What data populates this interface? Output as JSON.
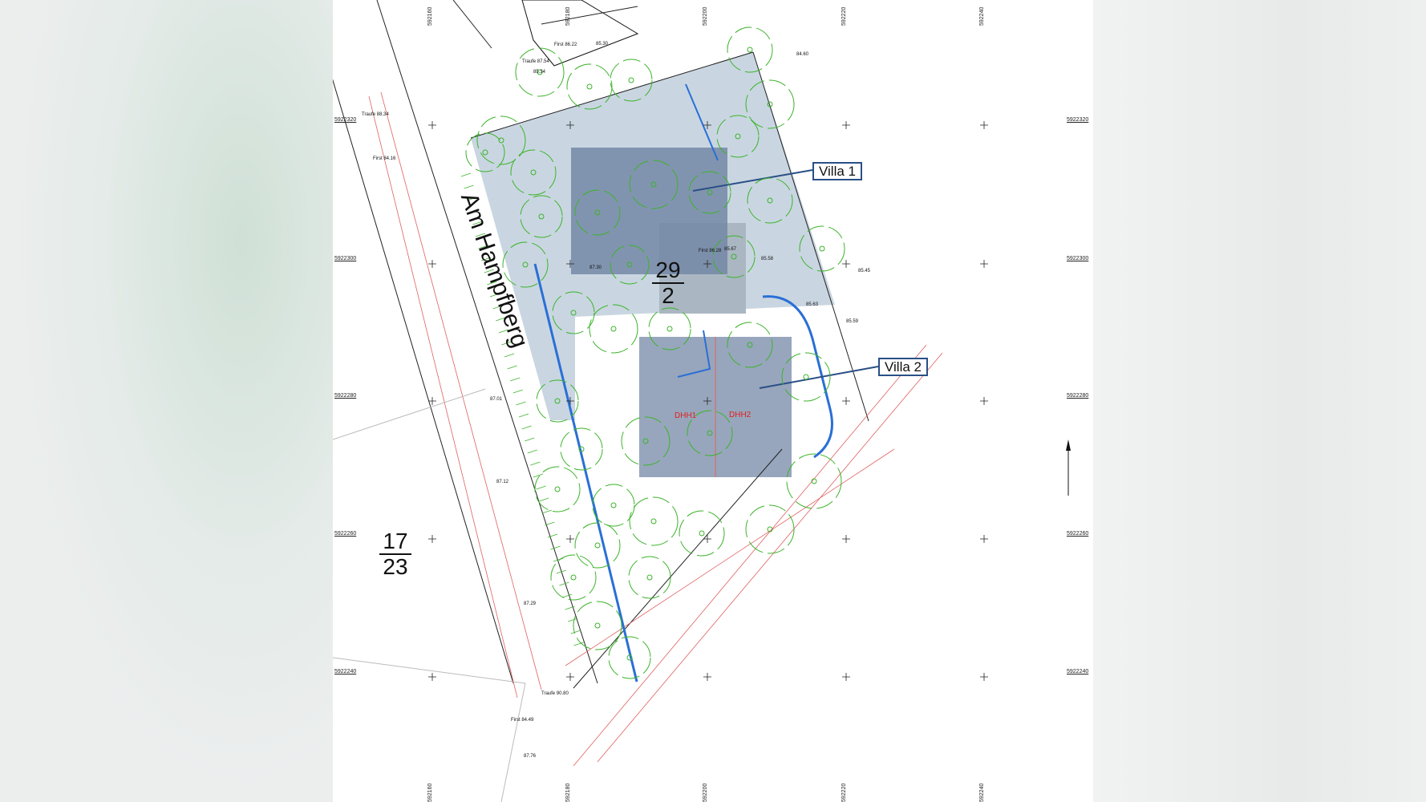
{
  "plan": {
    "street_name": "Am Hampfberg",
    "parcel_main": {
      "numerator": "29",
      "denominator": "2"
    },
    "parcel_neighbor": {
      "numerator": "17",
      "denominator": "23"
    },
    "callouts": [
      {
        "label": "Villa 1"
      },
      {
        "label": "Villa 2"
      }
    ],
    "units": [
      "DHH1",
      "DHH2"
    ],
    "grid_northing_labels": [
      "5922320",
      "5922300",
      "5922280",
      "5922260",
      "5922240"
    ],
    "grid_easting_labels": [
      "592160",
      "592180",
      "592200",
      "592220",
      "592240"
    ],
    "spot_heights": [
      "Traufe 87.54",
      "First 86.22",
      "85.30",
      "85.34",
      "First 86.28",
      "87.30",
      "85.67",
      "85.58",
      "85.45",
      "85.63",
      "Traufe 88.34",
      "First 84.16",
      "Traufe 90.80",
      "First 84.49",
      "87.01",
      "87.12",
      "87.29",
      "87.76",
      "84.60",
      "85.59"
    ],
    "colors": {
      "parcel_fill": "#c6d4df",
      "building_fill": "#7488a6",
      "tree_line": "#3cb32a",
      "boundary_red": "#e06060",
      "pipe_blue": "#2a6fd6",
      "callout_border": "#2a4f86"
    }
  }
}
